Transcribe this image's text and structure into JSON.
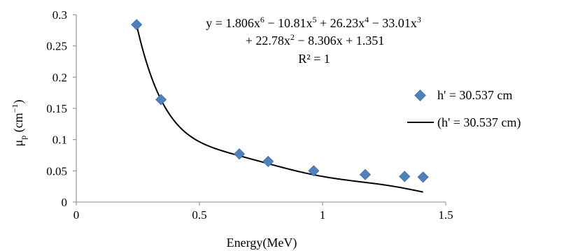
{
  "chart_data": {
    "type": "scatter",
    "xlabel": "Energy(MeV)",
    "ylabel_main": "μ",
    "ylabel_sub": "p",
    "ylabel_unit_open": " (cm",
    "ylabel_unit_exp": "−1",
    "ylabel_unit_close": ")",
    "xlim": [
      0,
      1.5
    ],
    "ylim": [
      0,
      0.3
    ],
    "x_ticks": [
      "0",
      "0.5",
      "1",
      "1.5"
    ],
    "x_tick_values": [
      0,
      0.5,
      1,
      1.5
    ],
    "y_ticks": [
      "0",
      "0.05",
      "0.1",
      "0.15",
      "0.2",
      "0.25",
      "0.3"
    ],
    "y_tick_values": [
      0,
      0.05,
      0.1,
      0.15,
      0.2,
      0.25,
      0.3
    ],
    "grid": false,
    "legend_position": "right",
    "series": [
      {
        "name": "h' = 30.537 cm",
        "kind": "scatter",
        "marker": "diamond",
        "color": "#4f81bd",
        "x": [
          0.245,
          0.344,
          0.662,
          0.779,
          0.964,
          1.173,
          1.333,
          1.408
        ],
        "y": [
          0.284,
          0.164,
          0.077,
          0.065,
          0.05,
          0.044,
          0.041,
          0.04
        ]
      },
      {
        "name": "(h' = 30.537 cm)",
        "kind": "trendline",
        "color": "#000000",
        "polynomial_coefficients_high_to_low": [
          1.806,
          -10.81,
          26.23,
          -33.01,
          22.78,
          -8.306,
          1.351
        ],
        "x_range": [
          0.245,
          1.408
        ]
      }
    ],
    "annotation": {
      "line1": "y = 1.806x",
      "line1_e1": "6",
      "line1_t2": " − 10.81x",
      "line1_e2": "5",
      "line1_t3": " + 26.23x",
      "line1_e3": "4",
      "line1_t4": " − 33.01x",
      "line1_e4": "3",
      "line2": "+ 22.78x",
      "line2_e1": "2",
      "line2_t2": " − 8.306x + 1.351",
      "line3": "R² = 1"
    }
  }
}
